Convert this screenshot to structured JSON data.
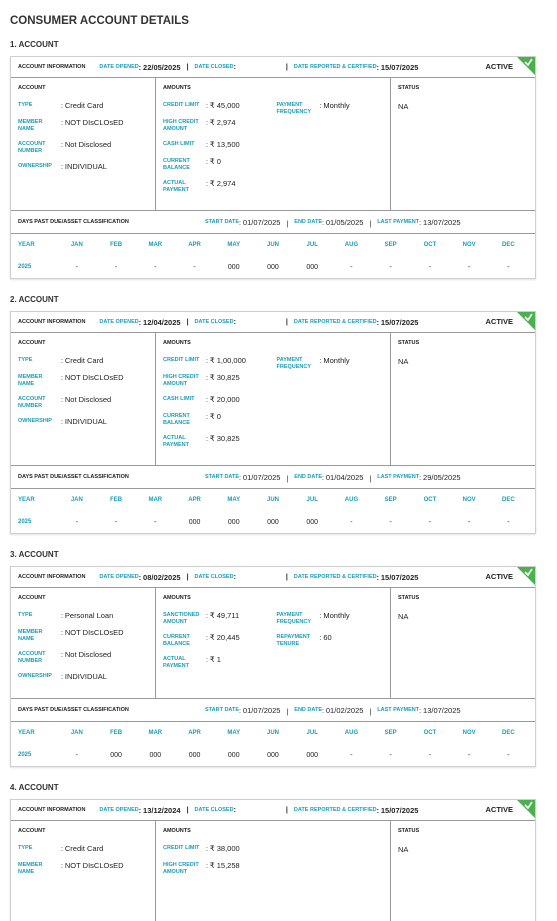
{
  "title": "CONSUMER ACCOUNT DETAILS",
  "accounts": [
    {
      "heading": "1. ACCOUNT",
      "info": {
        "label": "ACCOUNT INFORMATION",
        "date_opened_label": "DATE OPENED",
        "date_opened": "22/05/2025",
        "date_closed_label": "DATE CLOSED",
        "reported_label": "DATE REPORTED & CERTIFIED",
        "reported": "15/07/2025",
        "badge": "ACTIVE"
      },
      "account_label": "ACCOUNT",
      "account_fields": [
        {
          "label": "TYPE",
          "value": "Credit Card"
        },
        {
          "label": "MEMBER NAME",
          "value": "NOT DIsCLOsED"
        },
        {
          "label": "ACCOUNT NUMBER",
          "value": "Not Disclosed"
        },
        {
          "label": "OWNERSHIP",
          "value": "INDIVIDUAL"
        }
      ],
      "amounts_label": "AMOUNTS",
      "amount_fields": [
        {
          "label": "CREDIT LIMIT",
          "value": "₹ 45,000"
        },
        {
          "label": "HIGH CREDIT AMOUNT",
          "value": "₹ 2,974"
        },
        {
          "label": "CASH LIMIT",
          "value": "₹ 13,500"
        },
        {
          "label": "CURRENT BALANCE",
          "value": "₹ 0"
        },
        {
          "label": "ACTUAL PAYMENT",
          "value": "₹ 2,974"
        }
      ],
      "amount_fields_right": [
        {
          "label": "PAYMENT FREQUENCY",
          "value": "Monthly"
        }
      ],
      "status_label": "STATUS",
      "status": "NA",
      "dpd": {
        "label": "DAYS PAST DUE/ASSET CLASSIFICATION",
        "start_label": "START DATE",
        "start": "01/07/2025",
        "end_label": "END DATE",
        "end": "01/05/2025",
        "last_label": "LAST PAYMENT",
        "last": "13/07/2025",
        "header": [
          "YEAR",
          "JAN",
          "FEB",
          "MAR",
          "APR",
          "MAY",
          "JUN",
          "JUL",
          "AUG",
          "SEP",
          "OCT",
          "NOV",
          "DEC"
        ],
        "row": [
          "2025",
          "-",
          "-",
          "-",
          "-",
          "000",
          "000",
          "000",
          "-",
          "-",
          "-",
          "-",
          "-"
        ]
      }
    },
    {
      "heading": "2. ACCOUNT",
      "info": {
        "label": "ACCOUNT INFORMATION",
        "date_opened_label": "DATE OPENED",
        "date_opened": "12/04/2025",
        "date_closed_label": "DATE CLOSED",
        "reported_label": "DATE REPORTED & CERTIFIED",
        "reported": "15/07/2025",
        "badge": "ACTIVE"
      },
      "account_label": "ACCOUNT",
      "account_fields": [
        {
          "label": "TYPE",
          "value": "Credit Card"
        },
        {
          "label": "MEMBER NAME",
          "value": "NOT DIsCLOsED"
        },
        {
          "label": "ACCOUNT NUMBER",
          "value": "Not Disclosed"
        },
        {
          "label": "OWNERSHIP",
          "value": "INDIVIDUAL"
        }
      ],
      "amounts_label": "AMOUNTS",
      "amount_fields": [
        {
          "label": "CREDIT LIMIT",
          "value": "₹ 1,00,000"
        },
        {
          "label": "HIGH CREDIT AMOUNT",
          "value": "₹ 30,825"
        },
        {
          "label": "CASH LIMIT",
          "value": "₹ 20,000"
        },
        {
          "label": "CURRENT BALANCE",
          "value": "₹ 0"
        },
        {
          "label": "ACTUAL PAYMENT",
          "value": "₹ 30,825"
        }
      ],
      "amount_fields_right": [
        {
          "label": "PAYMENT FREQUENCY",
          "value": "Monthly"
        }
      ],
      "status_label": "STATUS",
      "status": "NA",
      "dpd": {
        "label": "DAYS PAST DUE/ASSET CLASSIFICATION",
        "start_label": "START DATE",
        "start": "01/07/2025",
        "end_label": "END DATE",
        "end": "01/04/2025",
        "last_label": "LAST PAYMENT",
        "last": "29/05/2025",
        "header": [
          "YEAR",
          "JAN",
          "FEB",
          "MAR",
          "APR",
          "MAY",
          "JUN",
          "JUL",
          "AUG",
          "SEP",
          "OCT",
          "NOV",
          "DEC"
        ],
        "row": [
          "2025",
          "-",
          "-",
          "-",
          "000",
          "000",
          "000",
          "000",
          "-",
          "-",
          "-",
          "-",
          "-"
        ]
      }
    },
    {
      "heading": "3. ACCOUNT",
      "info": {
        "label": "ACCOUNT INFORMATION",
        "date_opened_label": "DATE OPENED",
        "date_opened": "08/02/2025",
        "date_closed_label": "DATE CLOSED",
        "reported_label": "DATE REPORTED & CERTIFIED",
        "reported": "15/07/2025",
        "badge": "ACTIVE"
      },
      "account_label": "ACCOUNT",
      "account_fields": [
        {
          "label": "TYPE",
          "value": "Personal Loan"
        },
        {
          "label": "MEMBER NAME",
          "value": "NOT DIsCLOsED"
        },
        {
          "label": "ACCOUNT NUMBER",
          "value": "Not Disclosed"
        },
        {
          "label": "OWNERSHIP",
          "value": "INDIVIDUAL"
        }
      ],
      "amounts_label": "AMOUNTS",
      "amount_fields": [
        {
          "label": "SANCTIONED AMOUNT",
          "value": "₹ 49,711"
        },
        {
          "label": "CURRENT BALANCE",
          "value": "₹ 20,445"
        },
        {
          "label": "ACTUAL PAYMENT",
          "value": "₹ 1"
        }
      ],
      "amount_fields_right": [
        {
          "label": "PAYMENT FREQUENCY",
          "value": "Monthly"
        },
        {
          "label": "REPAYMENT TENURE",
          "value": "60"
        }
      ],
      "status_label": "STATUS",
      "status": "NA",
      "dpd": {
        "label": "DAYS PAST DUE/ASSET CLASSIFICATION",
        "start_label": "START DATE",
        "start": "01/07/2025",
        "end_label": "END DATE",
        "end": "01/02/2025",
        "last_label": "LAST PAYMENT",
        "last": "13/07/2025",
        "header": [
          "YEAR",
          "JAN",
          "FEB",
          "MAR",
          "APR",
          "MAY",
          "JUN",
          "JUL",
          "AUG",
          "SEP",
          "OCT",
          "NOV",
          "DEC"
        ],
        "row": [
          "2025",
          "-",
          "000",
          "000",
          "000",
          "000",
          "000",
          "000",
          "-",
          "-",
          "-",
          "-",
          "-"
        ]
      }
    },
    {
      "heading": "4. ACCOUNT",
      "info": {
        "label": "ACCOUNT INFORMATION",
        "date_opened_label": "DATE OPENED",
        "date_opened": "13/12/2024",
        "date_closed_label": "DATE CLOSED",
        "reported_label": "DATE REPORTED & CERTIFIED",
        "reported": "15/07/2025",
        "badge": "ACTIVE"
      },
      "account_label": "ACCOUNT",
      "account_fields": [
        {
          "label": "TYPE",
          "value": "Credit Card"
        },
        {
          "label": "MEMBER NAME",
          "value": "NOT DIsCLOsED"
        }
      ],
      "amounts_label": "AMOUNTS",
      "amount_fields": [
        {
          "label": "CREDIT LIMIT",
          "value": "₹ 38,000"
        },
        {
          "label": "HIGH CREDIT AMOUNT",
          "value": "₹ 15,258"
        }
      ],
      "amount_fields_right": [],
      "status_label": "STATUS",
      "status": "NA"
    }
  ]
}
